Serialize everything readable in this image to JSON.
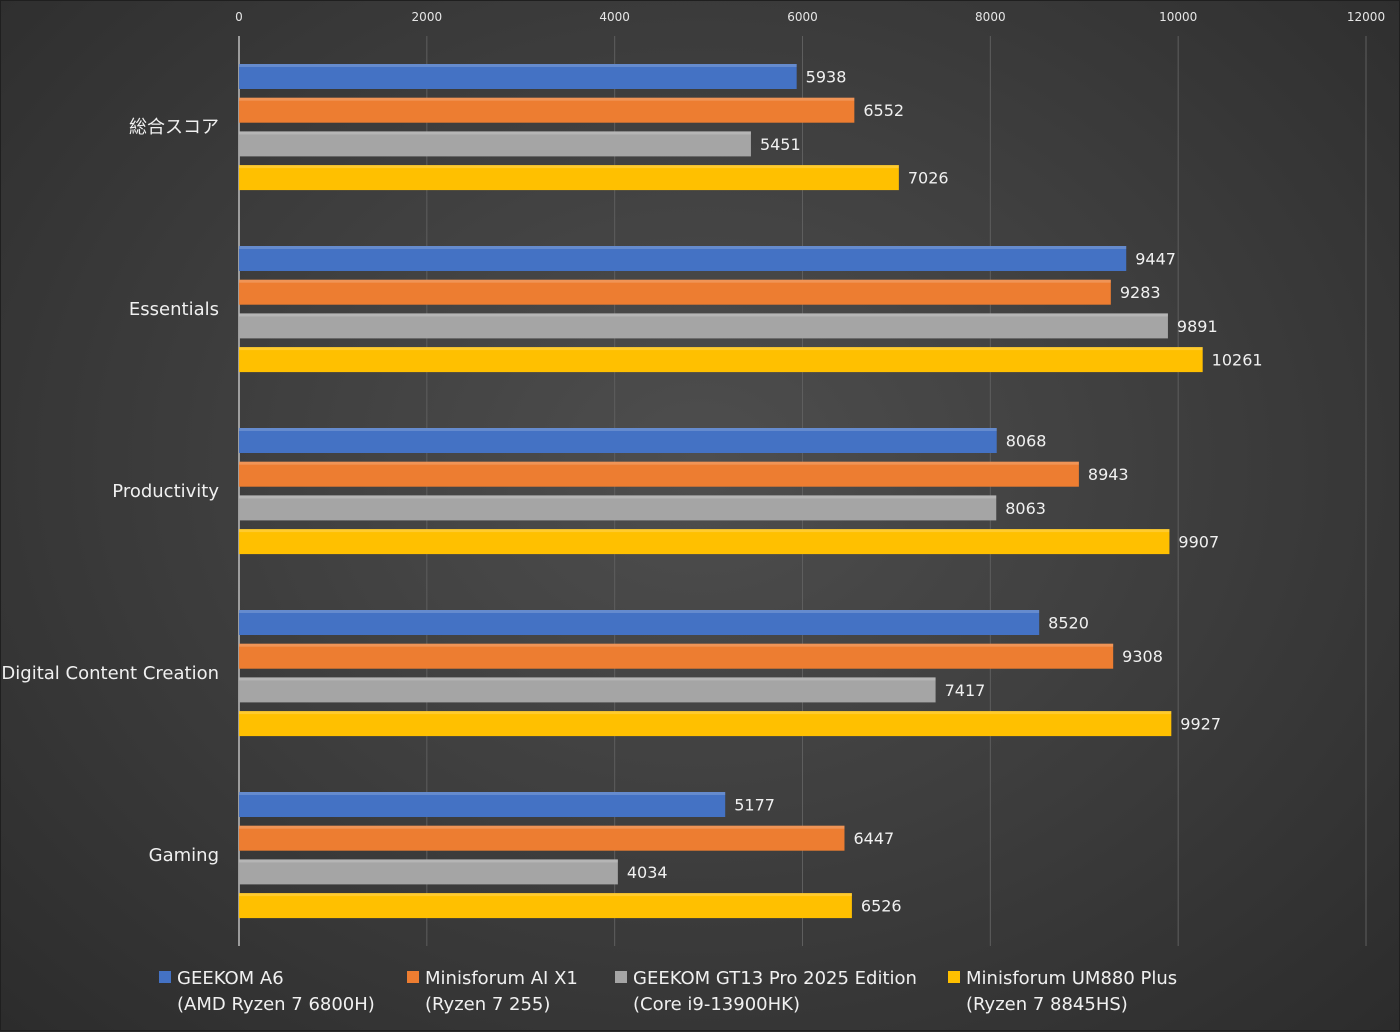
{
  "chart_data": {
    "type": "bar",
    "orientation": "horizontal",
    "title": "",
    "xlabel": "",
    "ylabel": "",
    "xlim": [
      0,
      12000
    ],
    "x_ticks": [
      "0",
      "2000",
      "4000",
      "6000",
      "8000",
      "10000",
      "12000"
    ],
    "grid": true,
    "legend_position": "bottom",
    "categories": [
      "総合スコア",
      "Essentials",
      "Productivity",
      "Digital Content Creation",
      "Gaming"
    ],
    "series": [
      {
        "name": "GEEKOM A6",
        "sub": "(AMD Ryzen 7 6800H)",
        "color": "#4472C4",
        "values": [
          5938,
          9447,
          8068,
          8520,
          5177
        ]
      },
      {
        "name": "Minisforum AI X1",
        "sub": "(Ryzen 7 255)",
        "color": "#ED7D31",
        "values": [
          6552,
          9283,
          8943,
          9308,
          6447
        ]
      },
      {
        "name": "GEEKOM GT13 Pro 2025 Edition",
        "sub": "(Core i9-13900HK)",
        "color": "#A5A5A5",
        "values": [
          5451,
          9891,
          8063,
          7417,
          4034
        ]
      },
      {
        "name": "Minisforum UM880 Plus",
        "sub": "(Ryzen 7 8845HS)",
        "color": "#FFC000",
        "values": [
          7026,
          10261,
          9907,
          9927,
          6526
        ]
      }
    ]
  }
}
